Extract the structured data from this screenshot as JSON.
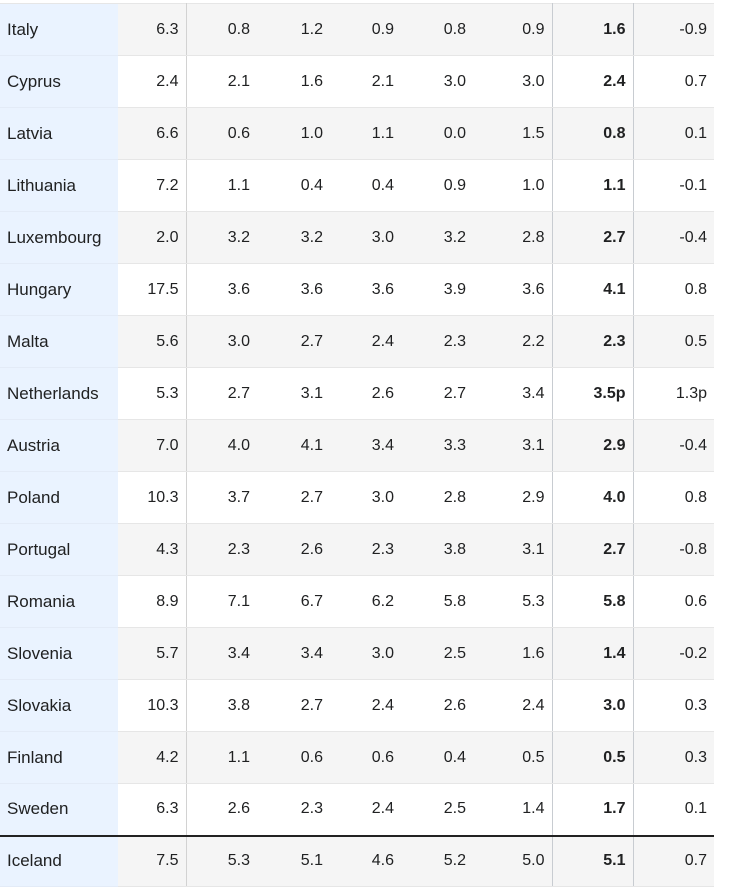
{
  "table": {
    "rows": [
      {
        "country": "Italy",
        "values": [
          "6.3",
          "0.8",
          "1.2",
          "0.9",
          "0.8",
          "0.9",
          "1.6",
          "-0.9"
        ]
      },
      {
        "country": "Cyprus",
        "values": [
          "2.4",
          "2.1",
          "1.6",
          "2.1",
          "3.0",
          "3.0",
          "2.4",
          "0.7"
        ]
      },
      {
        "country": "Latvia",
        "values": [
          "6.6",
          "0.6",
          "1.0",
          "1.1",
          "0.0",
          "1.5",
          "0.8",
          "0.1"
        ]
      },
      {
        "country": "Lithuania",
        "values": [
          "7.2",
          "1.1",
          "0.4",
          "0.4",
          "0.9",
          "1.0",
          "1.1",
          "-0.1"
        ]
      },
      {
        "country": "Luxembourg",
        "values": [
          "2.0",
          "3.2",
          "3.2",
          "3.0",
          "3.2",
          "2.8",
          "2.7",
          "-0.4"
        ]
      },
      {
        "country": "Hungary",
        "values": [
          "17.5",
          "3.6",
          "3.6",
          "3.6",
          "3.9",
          "3.6",
          "4.1",
          "0.8"
        ]
      },
      {
        "country": "Malta",
        "values": [
          "5.6",
          "3.0",
          "2.7",
          "2.4",
          "2.3",
          "2.2",
          "2.3",
          "0.5"
        ]
      },
      {
        "country": "Netherlands",
        "values": [
          "5.3",
          "2.7",
          "3.1",
          "2.6",
          "2.7",
          "3.4",
          "3.5p",
          "1.3p"
        ]
      },
      {
        "country": "Austria",
        "values": [
          "7.0",
          "4.0",
          "4.1",
          "3.4",
          "3.3",
          "3.1",
          "2.9",
          "-0.4"
        ]
      },
      {
        "country": "Poland",
        "values": [
          "10.3",
          "3.7",
          "2.7",
          "3.0",
          "2.8",
          "2.9",
          "4.0",
          "0.8"
        ]
      },
      {
        "country": "Portugal",
        "values": [
          "4.3",
          "2.3",
          "2.6",
          "2.3",
          "3.8",
          "3.1",
          "2.7",
          "-0.8"
        ]
      },
      {
        "country": "Romania",
        "values": [
          "8.9",
          "7.1",
          "6.7",
          "6.2",
          "5.8",
          "5.3",
          "5.8",
          "0.6"
        ]
      },
      {
        "country": "Slovenia",
        "values": [
          "5.7",
          "3.4",
          "3.4",
          "3.0",
          "2.5",
          "1.6",
          "1.4",
          "-0.2"
        ]
      },
      {
        "country": "Slovakia",
        "values": [
          "10.3",
          "3.8",
          "2.7",
          "2.4",
          "2.6",
          "2.4",
          "3.0",
          "0.3"
        ]
      },
      {
        "country": "Finland",
        "values": [
          "4.2",
          "1.1",
          "0.6",
          "0.6",
          "0.4",
          "0.5",
          "0.5",
          "0.3"
        ]
      },
      {
        "country": "Sweden",
        "values": [
          "6.3",
          "2.6",
          "2.3",
          "2.4",
          "2.5",
          "1.4",
          "1.7",
          "0.1"
        ]
      },
      {
        "country": "Iceland",
        "values": [
          "7.5",
          "5.3",
          "5.1",
          "4.6",
          "5.2",
          "5.0",
          "5.1",
          "0.7"
        ]
      }
    ]
  }
}
